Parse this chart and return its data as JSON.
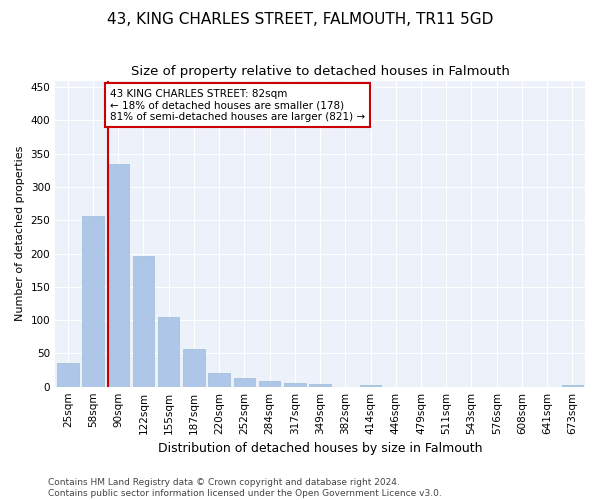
{
  "title": "43, KING CHARLES STREET, FALMOUTH, TR11 5GD",
  "subtitle": "Size of property relative to detached houses in Falmouth",
  "xlabel": "Distribution of detached houses by size in Falmouth",
  "ylabel": "Number of detached properties",
  "bar_color": "#aec6e8",
  "bar_edge_color": "#9bbdd6",
  "vline_color": "#cc0000",
  "annotation_text": "43 KING CHARLES STREET: 82sqm\n← 18% of detached houses are smaller (178)\n81% of semi-detached houses are larger (821) →",
  "annotation_box_color": "#ffffff",
  "annotation_box_edge": "#cc0000",
  "categories": [
    "25sqm",
    "58sqm",
    "90sqm",
    "122sqm",
    "155sqm",
    "187sqm",
    "220sqm",
    "252sqm",
    "284sqm",
    "317sqm",
    "349sqm",
    "382sqm",
    "414sqm",
    "446sqm",
    "479sqm",
    "511sqm",
    "543sqm",
    "576sqm",
    "608sqm",
    "641sqm",
    "673sqm"
  ],
  "values": [
    35,
    257,
    335,
    196,
    104,
    57,
    20,
    13,
    9,
    6,
    4,
    0,
    3,
    0,
    0,
    0,
    0,
    0,
    0,
    0,
    3
  ],
  "ylim": [
    0,
    460
  ],
  "yticks": [
    0,
    50,
    100,
    150,
    200,
    250,
    300,
    350,
    400,
    450
  ],
  "background_color": "#edf2fa",
  "footer_text": "Contains HM Land Registry data © Crown copyright and database right 2024.\nContains public sector information licensed under the Open Government Licence v3.0.",
  "title_fontsize": 11,
  "subtitle_fontsize": 9.5,
  "xlabel_fontsize": 9,
  "ylabel_fontsize": 8,
  "tick_fontsize": 7.5,
  "footer_fontsize": 6.5
}
